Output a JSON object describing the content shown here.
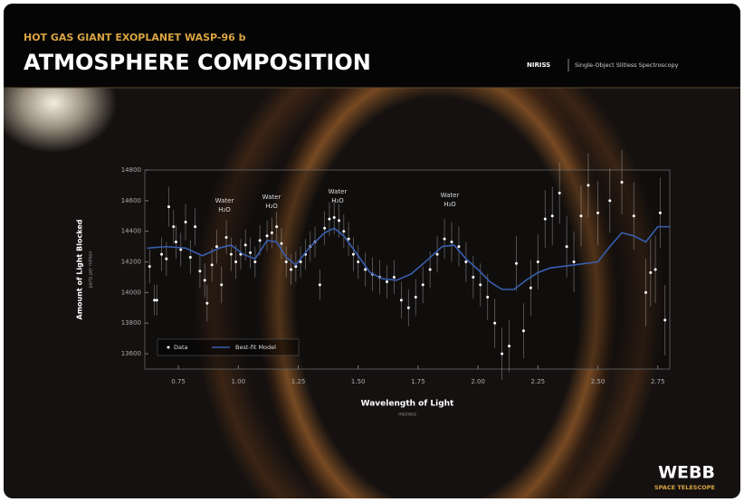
{
  "header": {
    "subtitle": "HOT GAS GIANT EXOPLANET WASP-96 b",
    "title": "ATMOSPHERE COMPOSITION",
    "instrument": "NIRISS",
    "mode": "Single-Object Slitless Spectroscopy"
  },
  "logo": {
    "name": "WEBB",
    "tagline": "SPACE TELESCOPE"
  },
  "chart_data": {
    "type": "scatter",
    "x_label": "Wavelength of Light",
    "x_unit": "microns",
    "y_label": "Amount of Light Blocked",
    "y_unit": "parts per million",
    "xlim": [
      0.61,
      2.8
    ],
    "ylim": [
      13500,
      14800
    ],
    "xticks": [
      {
        "value": 0.75,
        "label": "0.75"
      },
      {
        "value": 1.0,
        "label": "1.00"
      },
      {
        "value": 1.25,
        "label": "1.25"
      },
      {
        "value": 1.5,
        "label": "1.50"
      },
      {
        "value": 1.75,
        "label": "1.75"
      },
      {
        "value": 2.0,
        "label": "2.00"
      },
      {
        "value": 2.25,
        "label": "2.25"
      },
      {
        "value": 2.5,
        "label": "2.50"
      },
      {
        "value": 2.75,
        "label": "2.75"
      }
    ],
    "yticks": [
      13600,
      13800,
      14000,
      14200,
      14400,
      14600,
      14800
    ],
    "legend": "lower left",
    "annotations": [
      {
        "label": "Water",
        "formula": "H₂O"
      },
      {
        "label": "Water",
        "formula": "H₂O"
      },
      {
        "label": "Water",
        "formula": "H₂O"
      },
      {
        "label": "Water",
        "formula": "H₂O"
      }
    ],
    "series": [
      {
        "name": "Data",
        "style": "points",
        "color": "#ffffff",
        "x": [
          0.63,
          0.65,
          0.66,
          0.68,
          0.7,
          0.71,
          0.73,
          0.74,
          0.76,
          0.78,
          0.8,
          0.82,
          0.84,
          0.86,
          0.87,
          0.89,
          0.91,
          0.93,
          0.95,
          0.97,
          0.99,
          1.01,
          1.03,
          1.05,
          1.07,
          1.09,
          1.12,
          1.14,
          1.16,
          1.18,
          1.2,
          1.22,
          1.24,
          1.26,
          1.28,
          1.3,
          1.32,
          1.34,
          1.36,
          1.38,
          1.4,
          1.42,
          1.44,
          1.46,
          1.48,
          1.5,
          1.53,
          1.56,
          1.59,
          1.62,
          1.65,
          1.68,
          1.71,
          1.74,
          1.77,
          1.8,
          1.83,
          1.86,
          1.89,
          1.92,
          1.95,
          1.98,
          2.01,
          2.04,
          2.07,
          2.1,
          2.13,
          2.16,
          2.19,
          2.22,
          2.25,
          2.28,
          2.31,
          2.34,
          2.37,
          2.4,
          2.43,
          2.46,
          2.5,
          2.55,
          2.6,
          2.65,
          2.7,
          2.72,
          2.74,
          2.76,
          2.78
        ],
        "values": [
          14170,
          13950,
          13950,
          14250,
          14220,
          14560,
          14430,
          14330,
          14280,
          14460,
          14230,
          14430,
          14140,
          14080,
          13930,
          14180,
          14300,
          14050,
          14360,
          14250,
          14200,
          14250,
          14310,
          14260,
          14200,
          14340,
          14370,
          14390,
          14430,
          14320,
          14200,
          14150,
          14170,
          14200,
          14250,
          14300,
          14330,
          14050,
          14420,
          14480,
          14490,
          14470,
          14400,
          14350,
          14250,
          14200,
          14150,
          14120,
          14100,
          14070,
          14100,
          13950,
          13900,
          13970,
          14050,
          14150,
          14250,
          14350,
          14330,
          14300,
          14200,
          14100,
          14050,
          13970,
          13800,
          13600,
          13650,
          14190,
          13750,
          14030,
          14200,
          14480,
          14500,
          14650,
          14300,
          14200,
          14500,
          14700,
          14520,
          14600,
          14720,
          14500,
          14000,
          14130,
          14150,
          14520,
          13820
        ],
        "errors": [
          110,
          100,
          100,
          110,
          110,
          130,
          110,
          110,
          110,
          120,
          110,
          120,
          110,
          110,
          120,
          110,
          110,
          120,
          110,
          110,
          110,
          100,
          100,
          100,
          100,
          100,
          100,
          100,
          100,
          100,
          100,
          100,
          100,
          100,
          100,
          100,
          100,
          100,
          110,
          110,
          110,
          110,
          110,
          110,
          110,
          110,
          110,
          110,
          110,
          110,
          110,
          120,
          120,
          120,
          120,
          120,
          120,
          130,
          130,
          130,
          130,
          140,
          140,
          150,
          160,
          170,
          170,
          180,
          180,
          180,
          180,
          190,
          190,
          200,
          200,
          200,
          200,
          210,
          210,
          210,
          210,
          220,
          220,
          220,
          220,
          230,
          230
        ]
      },
      {
        "name": "Best-fit Model",
        "style": "line",
        "color": "#3a5fb0",
        "x": [
          0.62,
          0.7,
          0.78,
          0.85,
          0.92,
          0.97,
          1.02,
          1.07,
          1.12,
          1.16,
          1.2,
          1.24,
          1.3,
          1.36,
          1.4,
          1.44,
          1.5,
          1.55,
          1.6,
          1.66,
          1.72,
          1.78,
          1.85,
          1.9,
          1.95,
          2.0,
          2.05,
          2.1,
          2.15,
          2.2,
          2.25,
          2.3,
          2.4,
          2.5,
          2.55,
          2.6,
          2.65,
          2.7,
          2.75,
          2.8
        ],
        "values": [
          14290,
          14300,
          14290,
          14240,
          14290,
          14310,
          14250,
          14220,
          14340,
          14330,
          14230,
          14180,
          14300,
          14390,
          14420,
          14370,
          14240,
          14130,
          14090,
          14080,
          14120,
          14200,
          14300,
          14310,
          14220,
          14150,
          14070,
          14020,
          14020,
          14080,
          14130,
          14160,
          14180,
          14200,
          14300,
          14390,
          14370,
          14330,
          14430,
          14430
        ]
      }
    ]
  }
}
